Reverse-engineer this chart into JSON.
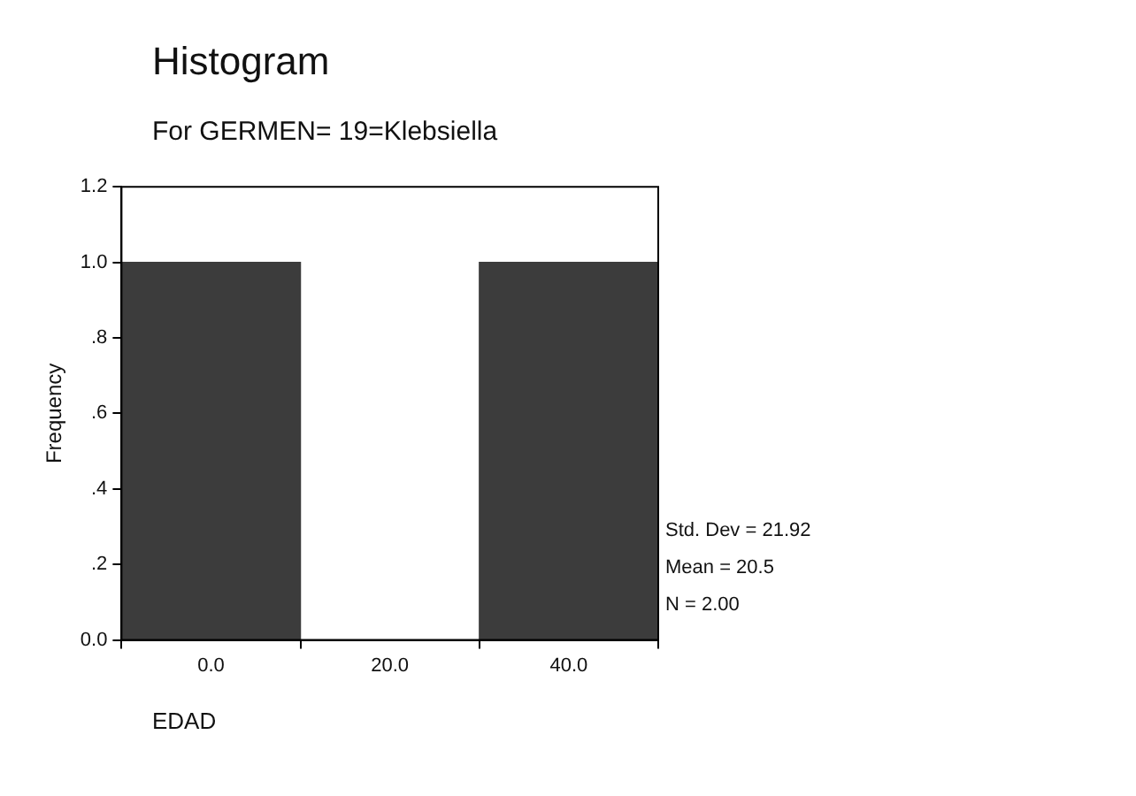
{
  "chart_data": {
    "type": "histogram",
    "title": "Histogram",
    "subtitle": "For GERMEN= 19=Klebsiella",
    "xlabel": "EDAD",
    "ylabel": "Frequency",
    "bins": [
      -10,
      10,
      30,
      50
    ],
    "values": [
      1,
      0,
      1
    ],
    "color": "#3c3c3c",
    "xlim": [
      -10,
      50
    ],
    "ylim": [
      0,
      1.2
    ],
    "xticks": [
      {
        "value": 0,
        "label": "0.0"
      },
      {
        "value": 20,
        "label": "20.0"
      },
      {
        "value": 40,
        "label": "40.0"
      }
    ],
    "yticks": [
      {
        "value": 0,
        "label": "0.0"
      },
      {
        "value": 0.2,
        "label": ".2"
      },
      {
        "value": 0.4,
        "label": ".4"
      },
      {
        "value": 0.6,
        "label": ".6"
      },
      {
        "value": 0.8,
        "label": ".8"
      },
      {
        "value": 1.0,
        "label": "1.0"
      },
      {
        "value": 1.2,
        "label": "1.2"
      }
    ],
    "grid": false,
    "legend": false,
    "annotations": [
      "Std. Dev = 21.92",
      "Mean = 20.5",
      "N = 2.00"
    ]
  }
}
